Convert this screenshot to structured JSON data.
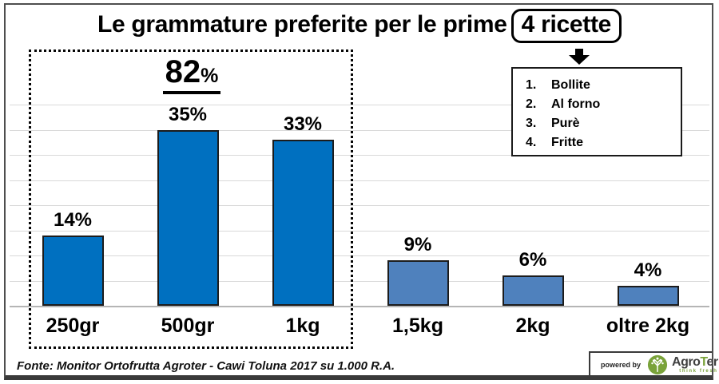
{
  "title": {
    "prefix": "Le grammature preferite per le prime",
    "boxed": "4 ricette"
  },
  "ricette": {
    "items": [
      "Bollite",
      "Al forno",
      "Purè",
      "Fritte"
    ]
  },
  "chart_data": {
    "type": "bar",
    "title": "Le grammature preferite per le prime 4 ricette",
    "categories": [
      "250gr",
      "500gr",
      "1kg",
      "1,5kg",
      "2kg",
      "oltre 2kg"
    ],
    "values": [
      14,
      35,
      33,
      9,
      6,
      4
    ],
    "value_labels": [
      "14%",
      "35%",
      "33%",
      "9%",
      "6%",
      "4%"
    ],
    "bar_colors": [
      "#0070C0",
      "#0070C0",
      "#0070C0",
      "#4F81BD",
      "#4F81BD",
      "#4F81BD"
    ],
    "xlabel": "",
    "ylabel": "",
    "ylim": [
      0,
      45
    ],
    "gridline_step": 5,
    "grid": true,
    "legend": "none",
    "annotation": {
      "text": "82",
      "suffix": "%",
      "applies_to": [
        "250gr",
        "500gr",
        "1kg"
      ]
    }
  },
  "footer": {
    "source": "Fonte: Monitor Ortofrutta Agroter - Cawi Toluna 2017 su 1.000 R.A.",
    "powered_by": "powered by",
    "logo": {
      "part1": "Agro",
      "part2": "T",
      "part3": "er",
      "tagline": "think fresh",
      "green": "#7AA33A",
      "icon": "tree-icon"
    }
  }
}
